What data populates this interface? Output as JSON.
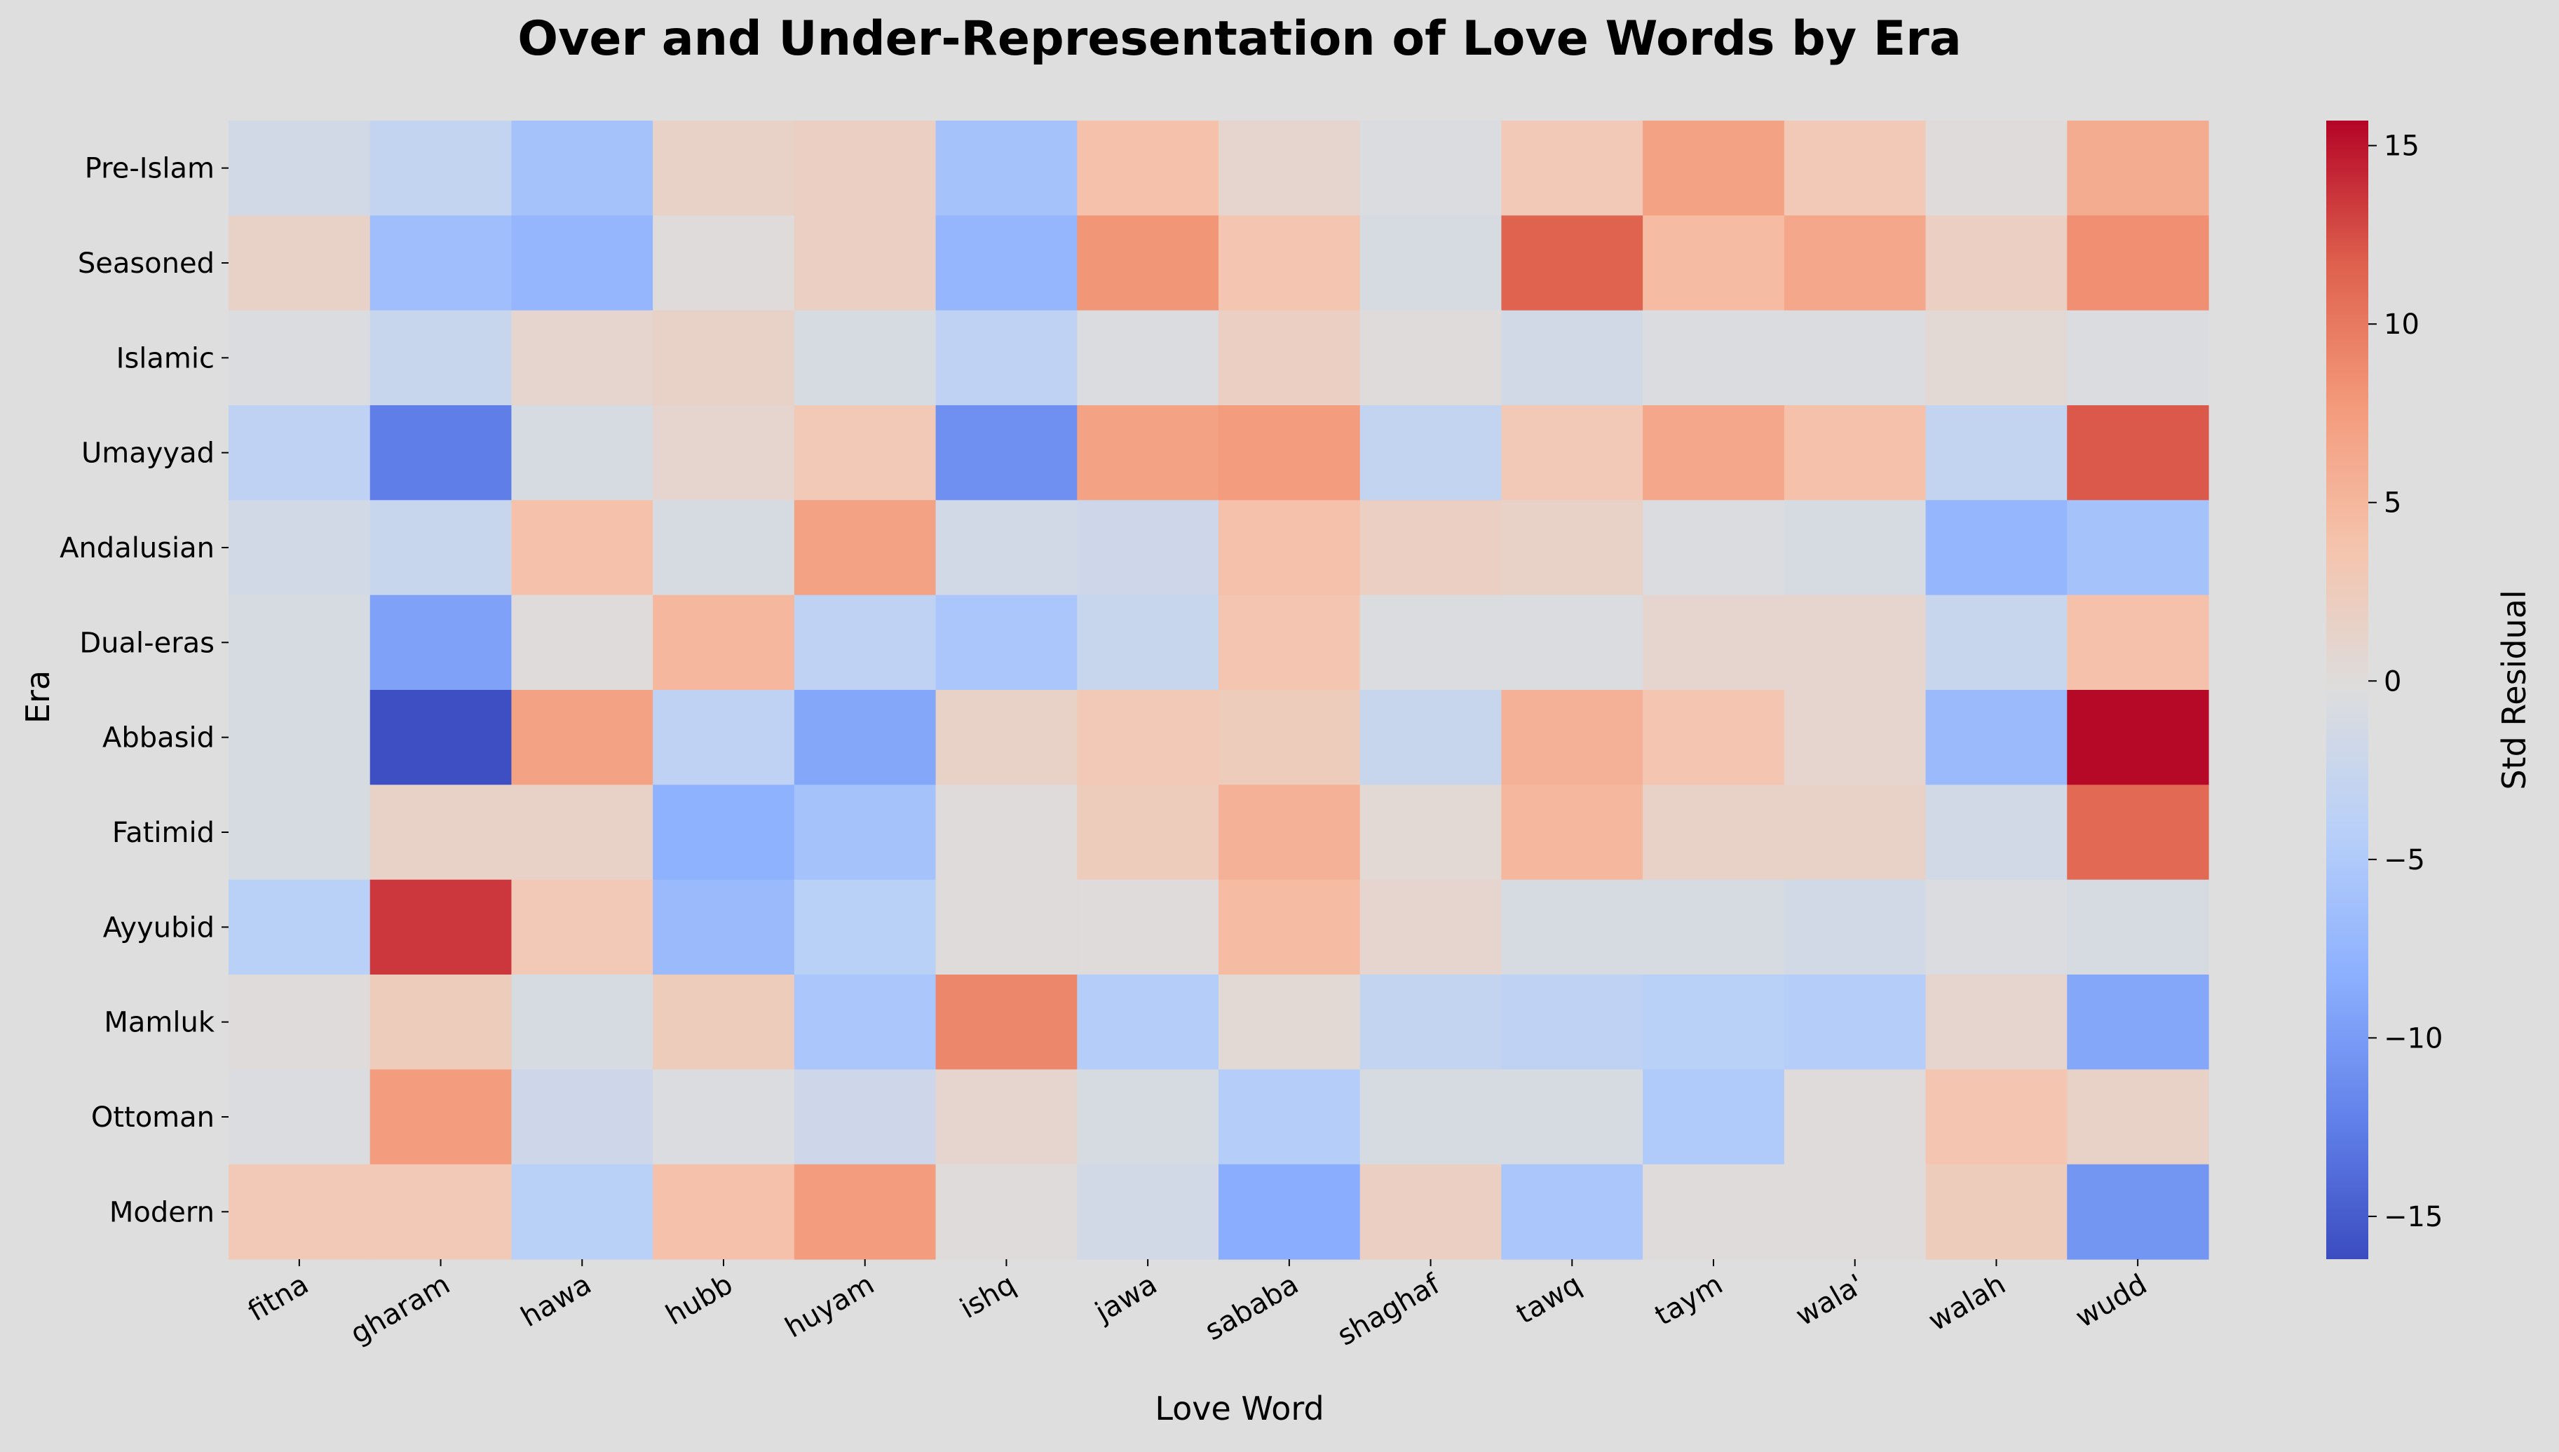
{
  "chart_data": {
    "type": "heatmap",
    "title": "Over and Under-Representation of Love Words by Era",
    "xlabel": "Love Word",
    "ylabel": "Era",
    "colorbar_label": "Std Residual",
    "colormap": "coolwarm",
    "vlim": [
      -16.2,
      15.7
    ],
    "colorbar_ticks": [
      15,
      10,
      5,
      0,
      -5,
      -10,
      -15
    ],
    "x_categories": [
      "fitna",
      "gharam",
      "hawa",
      "hubb",
      "huyam",
      "ishq",
      "jawa",
      "sababa",
      "shaghaf",
      "tawq",
      "taym",
      "wala'",
      "walah",
      "wudd"
    ],
    "y_categories": [
      "Pre-Islam",
      "Seasoned",
      "Islamic",
      "Umayyad",
      "Andalusian",
      "Dual-eras",
      "Abbasid",
      "Fatimid",
      "Ayyubid",
      "Mamluk",
      "Ottoman",
      "Modern"
    ],
    "values": [
      [
        -1.5,
        -3.0,
        -6.0,
        1.5,
        2.0,
        -6.0,
        4.0,
        1.0,
        -0.5,
        3.0,
        7.0,
        3.0,
        0.0,
        6.0
      ],
      [
        1.5,
        -6.5,
        -7.5,
        0.0,
        2.0,
        -7.5,
        8.0,
        3.5,
        -1.0,
        11.5,
        4.5,
        6.5,
        2.0,
        8.5
      ],
      [
        -0.5,
        -2.5,
        1.0,
        1.5,
        -1.0,
        -3.5,
        -0.5,
        2.0,
        0.0,
        -1.5,
        -0.5,
        -0.5,
        0.5,
        -0.5
      ],
      [
        -3.5,
        -12.5,
        -1.0,
        1.0,
        3.0,
        -11.0,
        7.0,
        7.5,
        -3.0,
        3.0,
        6.5,
        4.0,
        -3.0,
        12.0
      ],
      [
        -1.5,
        -2.5,
        4.0,
        -1.0,
        7.0,
        -1.5,
        -2.0,
        4.0,
        2.0,
        1.5,
        -0.5,
        -1.0,
        -7.5,
        -6.0
      ],
      [
        -1.0,
        -9.5,
        0.0,
        5.0,
        -3.5,
        -5.5,
        -2.5,
        3.5,
        -0.5,
        -0.5,
        1.0,
        1.0,
        -2.5,
        4.0
      ],
      [
        -1.0,
        -16.0,
        7.0,
        -3.5,
        -9.0,
        1.5,
        3.0,
        2.5,
        -2.5,
        5.5,
        3.5,
        1.0,
        -7.0,
        15.5
      ],
      [
        -1.0,
        1.5,
        1.5,
        -8.0,
        -6.0,
        0.0,
        2.5,
        5.5,
        0.5,
        5.0,
        1.5,
        1.5,
        -1.5,
        11.0
      ],
      [
        -4.0,
        13.5,
        3.0,
        -7.0,
        -4.0,
        0.0,
        0.0,
        4.5,
        1.0,
        -1.0,
        -1.0,
        -1.5,
        -0.5,
        -1.0
      ],
      [
        0.0,
        2.5,
        -1.0,
        2.5,
        -5.5,
        9.0,
        -4.5,
        0.5,
        -3.0,
        -3.5,
        -4.0,
        -4.5,
        1.0,
        -9.0
      ],
      [
        -0.5,
        7.5,
        -2.0,
        -0.5,
        -2.0,
        1.0,
        -1.0,
        -4.5,
        -1.0,
        -1.0,
        -5.0,
        0.0,
        3.5,
        1.5
      ],
      [
        3.0,
        3.0,
        -4.0,
        4.0,
        7.5,
        0.0,
        -1.5,
        -8.5,
        2.0,
        -5.5,
        0.0,
        0.0,
        2.5,
        -10.5
      ]
    ]
  }
}
